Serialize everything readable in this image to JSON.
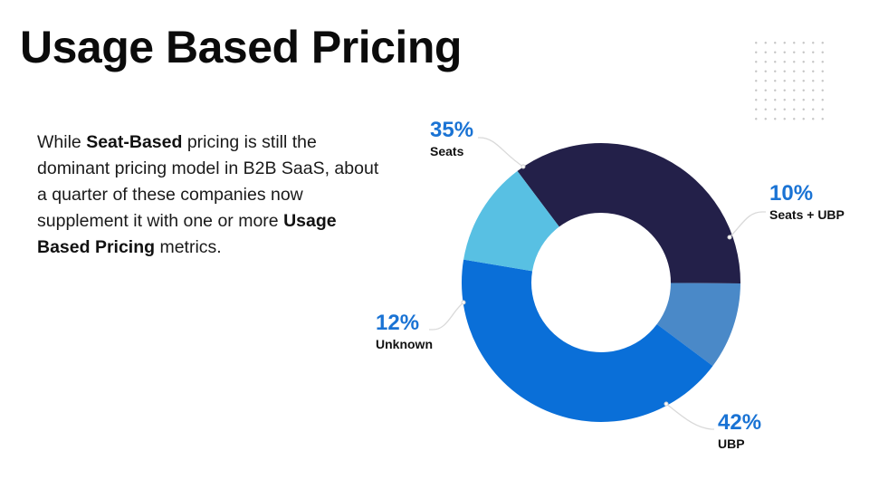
{
  "slide": {
    "title": "Usage Based Pricing",
    "paragraph": {
      "p1": "While ",
      "b1": "Seat-Based",
      "p2": " pricing is still the dominant pricing model in B2B SaaS, about a quarter of these companies now supplement it with one or more ",
      "b2": "Usage Based Pricing",
      "p3": " metrics."
    }
  },
  "colors": {
    "accent": "#1a73d4",
    "label_text": "#111111"
  },
  "chart_data": {
    "type": "pie",
    "variant": "donut",
    "title": "",
    "series": [
      {
        "name": "Seats",
        "value": 35,
        "label": "35%",
        "color": "#232049"
      },
      {
        "name": "Seats + UBP",
        "value": 10,
        "label": "10%",
        "color": "#4a89c8"
      },
      {
        "name": "UBP",
        "value": 42,
        "label": "42%",
        "color": "#0a6fd8"
      },
      {
        "name": "Unknown",
        "value": 12,
        "label": "12%",
        "color": "#58c0e3"
      }
    ],
    "legend": "none"
  }
}
